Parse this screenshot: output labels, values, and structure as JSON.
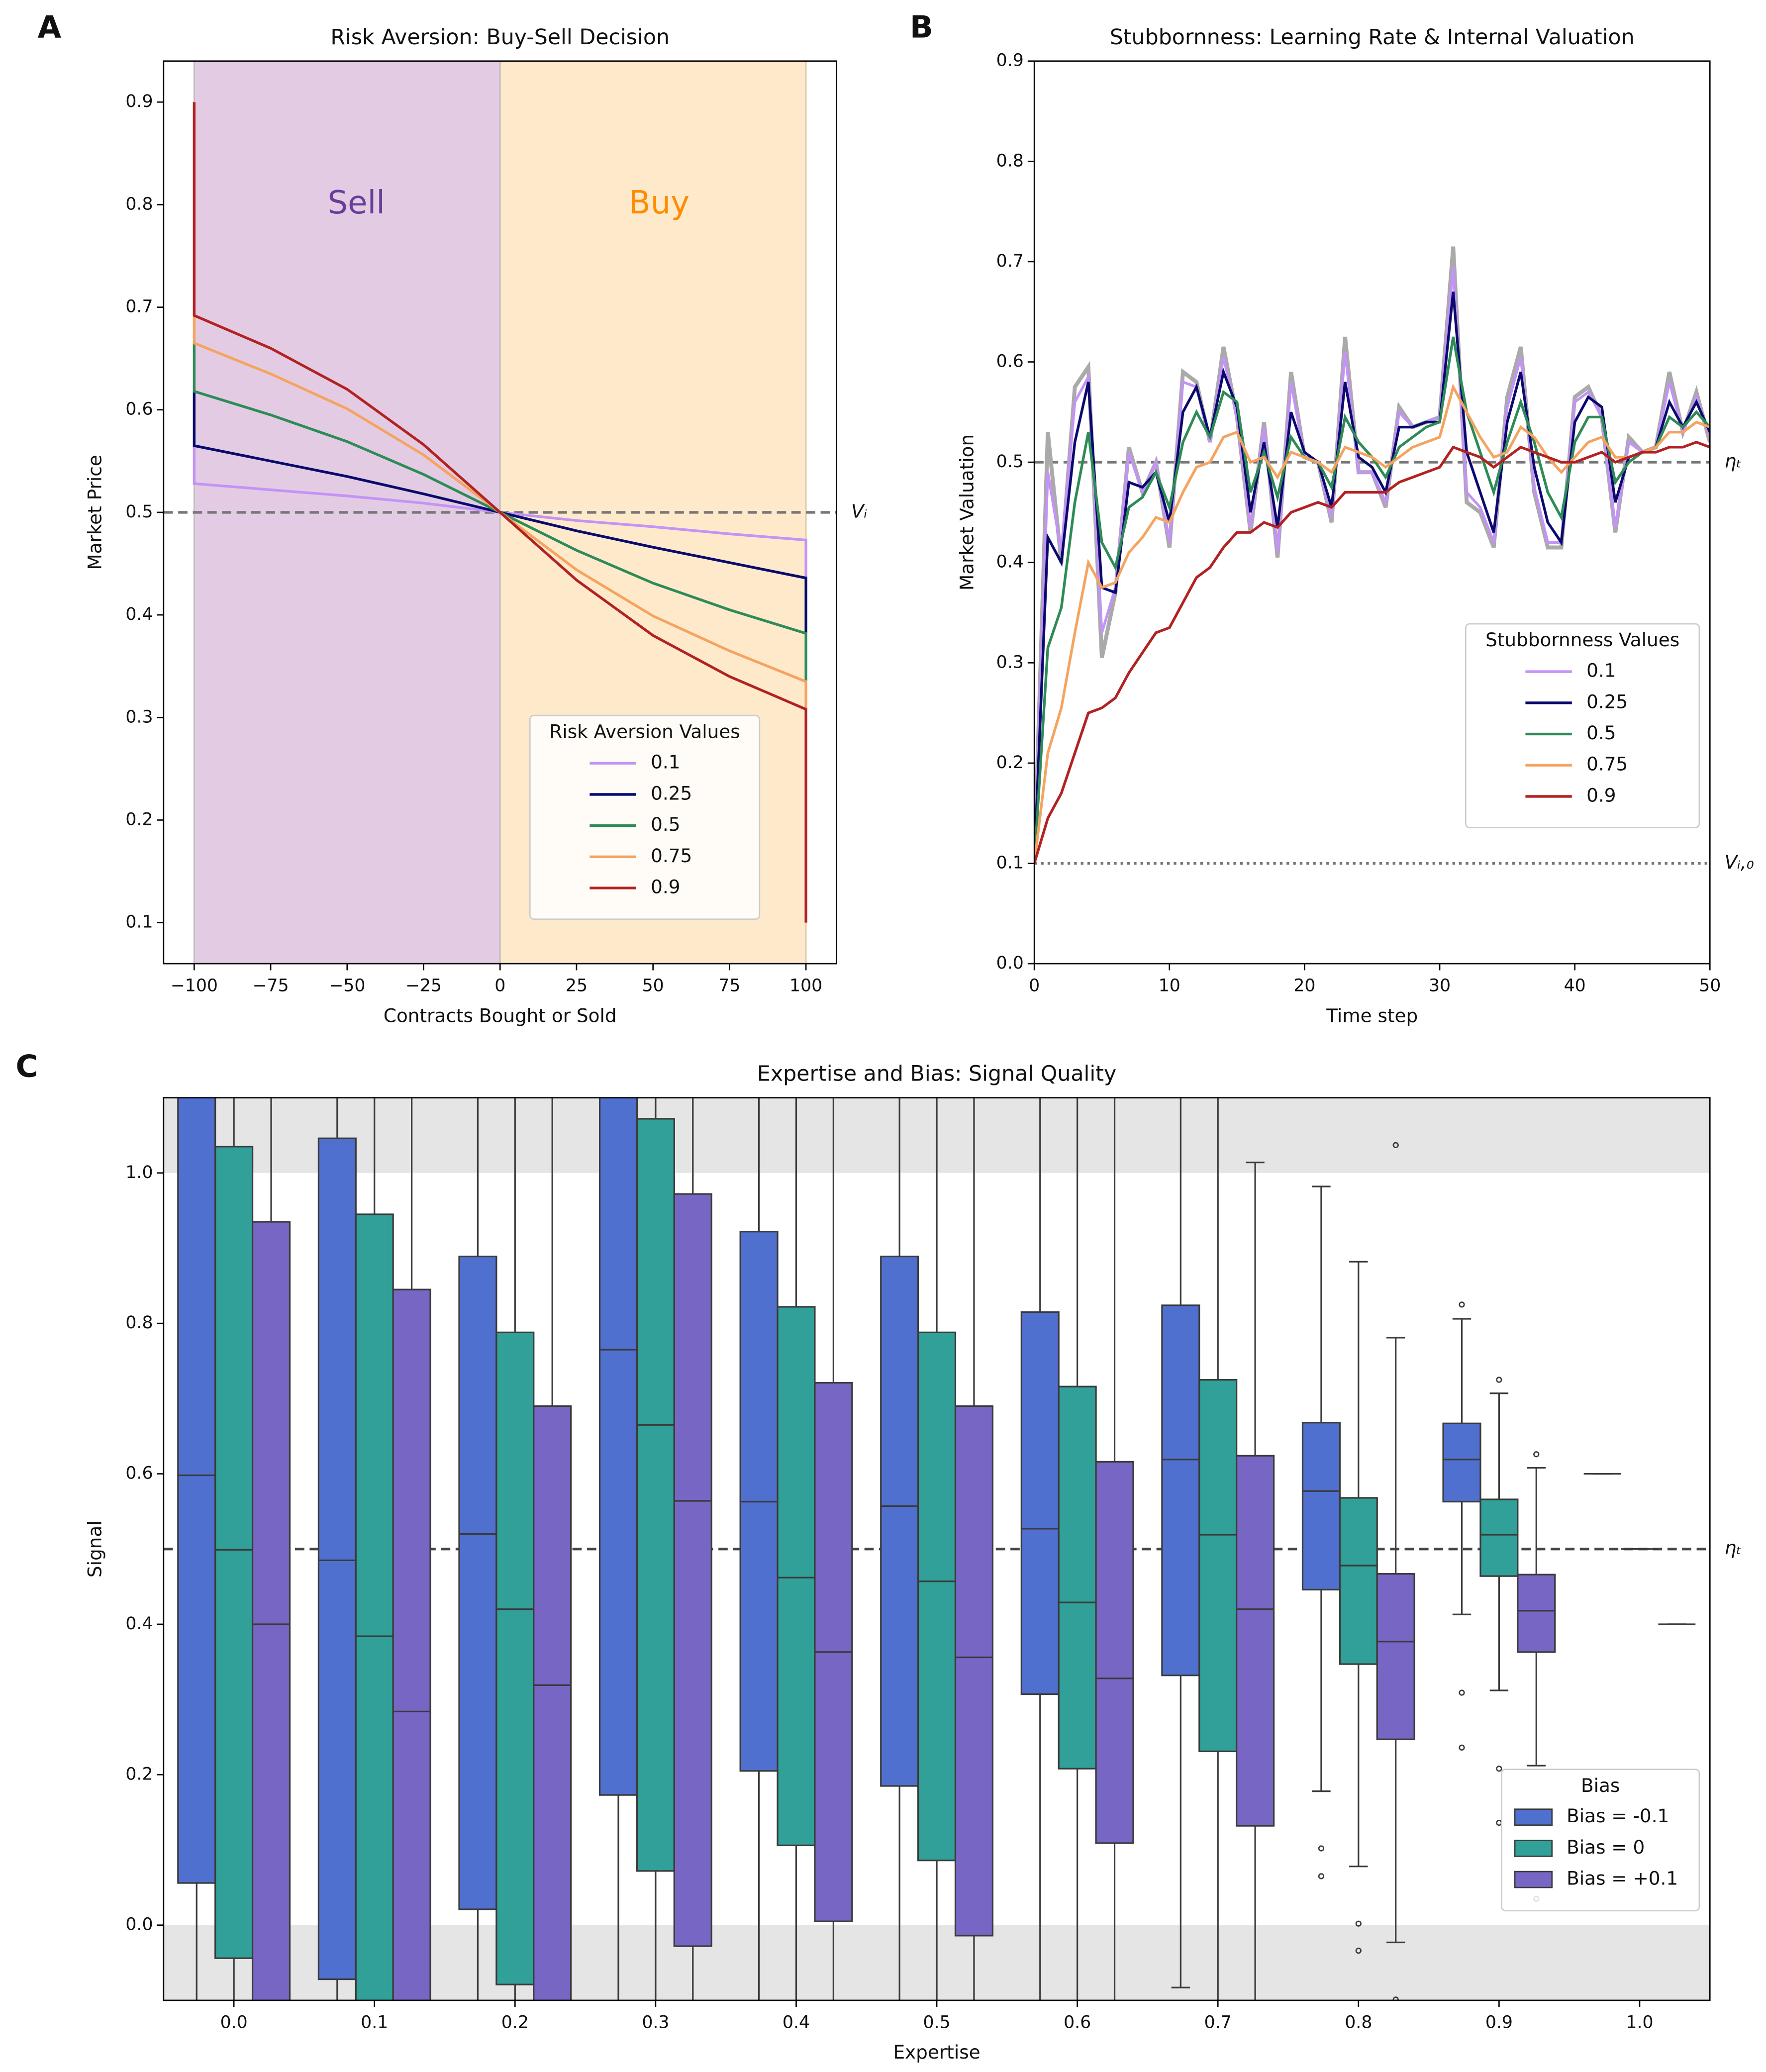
{
  "chart_data": [
    {
      "type": "line",
      "panel_label": "A",
      "title": "Risk Aversion: Buy-Sell Decision",
      "xlabel": "Contracts Bought or Sold",
      "ylabel": "Market Price",
      "x": [
        -100,
        -100,
        -75,
        -50,
        -25,
        0,
        25,
        50,
        75,
        100,
        100
      ],
      "series": [
        {
          "name": "0.1",
          "color": "#c393f5",
          "values": [
            0.565,
            0.528,
            0.522,
            0.516,
            0.509,
            0.5,
            0.492,
            0.486,
            0.479,
            0.473,
            0.436
          ]
        },
        {
          "name": "0.25",
          "color": "#0a0a6e",
          "values": [
            0.618,
            0.565,
            0.55,
            0.535,
            0.518,
            0.5,
            0.482,
            0.466,
            0.451,
            0.436,
            0.382
          ]
        },
        {
          "name": "0.5",
          "color": "#2e8b57",
          "values": [
            0.665,
            0.618,
            0.595,
            0.569,
            0.537,
            0.5,
            0.463,
            0.431,
            0.405,
            0.382,
            0.335
          ]
        },
        {
          "name": "0.75",
          "color": "#f4a460",
          "values": [
            0.692,
            0.665,
            0.635,
            0.601,
            0.556,
            0.5,
            0.444,
            0.399,
            0.365,
            0.335,
            0.308
          ]
        },
        {
          "name": "0.9",
          "color": "#b22222",
          "values": [
            0.9,
            0.692,
            0.66,
            0.62,
            0.566,
            0.5,
            0.434,
            0.38,
            0.34,
            0.308,
            0.1
          ]
        }
      ],
      "spans": [
        {
          "from": -100,
          "to": 0,
          "color": "#e3cce3"
        },
        {
          "from": 0,
          "to": 100,
          "color": "#feeacb"
        }
      ],
      "annotations": [
        {
          "text": "Sell",
          "color": "#6a3d9a"
        },
        {
          "text": "Buy",
          "color": "#ff8c00"
        }
      ],
      "hlines": [
        {
          "y": 0.5,
          "label": "Vᵢ",
          "color": "#777777",
          "style": "dashed"
        }
      ],
      "legend_title": "Risk Aversion Values",
      "xlim": [
        -110,
        110
      ],
      "ylim": [
        0.06,
        0.94
      ],
      "xticks": [
        {
          "value": -100,
          "label": "−100"
        },
        {
          "value": -75,
          "label": "−75"
        },
        {
          "value": -50,
          "label": "−50"
        },
        {
          "value": -25,
          "label": "−25"
        },
        0,
        25,
        50,
        75,
        100
      ],
      "yticks": [
        0.1,
        0.2,
        0.3,
        0.4,
        0.5,
        0.6,
        0.7,
        0.8,
        0.9
      ]
    },
    {
      "type": "line",
      "panel_label": "B",
      "title": "Stubbornness: Learning Rate & Internal Valuation",
      "xlabel": "Time step",
      "ylabel": "Market Valuation",
      "x": [
        0,
        1,
        2,
        3,
        4,
        5,
        6,
        7,
        8,
        9,
        10,
        11,
        12,
        13,
        14,
        15,
        16,
        17,
        18,
        19,
        20,
        21,
        22,
        23,
        24,
        25,
        26,
        27,
        28,
        29,
        30,
        31,
        32,
        33,
        34,
        35,
        36,
        37,
        38,
        39,
        40,
        41,
        42,
        43,
        44,
        45,
        46,
        47,
        48,
        49,
        50
      ],
      "extra_lines": [
        {
          "color": "#aaaaaa",
          "values": [
            0.1,
            0.53,
            0.4,
            0.575,
            0.595,
            0.305,
            0.37,
            0.515,
            0.47,
            0.5,
            0.415,
            0.59,
            0.58,
            0.52,
            0.615,
            0.545,
            0.43,
            0.54,
            0.405,
            0.59,
            0.505,
            0.5,
            0.44,
            0.625,
            0.49,
            0.49,
            0.455,
            0.555,
            0.535,
            0.54,
            0.545,
            0.715,
            0.46,
            0.45,
            0.415,
            0.565,
            0.615,
            0.47,
            0.415,
            0.415,
            0.565,
            0.575,
            0.545,
            0.43,
            0.525,
            0.51,
            0.515,
            0.59,
            0.53,
            0.57,
            0.52
          ]
        }
      ],
      "series": [
        {
          "name": "0.1",
          "color": "#c393f5",
          "values": [
            0.1,
            0.49,
            0.41,
            0.56,
            0.585,
            0.33,
            0.375,
            0.51,
            0.47,
            0.5,
            0.42,
            0.58,
            0.575,
            0.52,
            0.605,
            0.545,
            0.435,
            0.535,
            0.41,
            0.58,
            0.505,
            0.5,
            0.445,
            0.61,
            0.49,
            0.49,
            0.46,
            0.55,
            0.535,
            0.54,
            0.545,
            0.695,
            0.47,
            0.455,
            0.42,
            0.555,
            0.605,
            0.475,
            0.42,
            0.42,
            0.56,
            0.57,
            0.545,
            0.435,
            0.52,
            0.51,
            0.515,
            0.58,
            0.53,
            0.565,
            0.525
          ]
        },
        {
          "name": "0.25",
          "color": "#0a0a6e",
          "values": [
            0.1,
            0.425,
            0.4,
            0.52,
            0.58,
            0.375,
            0.37,
            0.48,
            0.475,
            0.49,
            0.44,
            0.55,
            0.575,
            0.525,
            0.59,
            0.555,
            0.45,
            0.52,
            0.435,
            0.55,
            0.51,
            0.5,
            0.455,
            0.58,
            0.505,
            0.495,
            0.47,
            0.535,
            0.535,
            0.54,
            0.54,
            0.67,
            0.51,
            0.47,
            0.43,
            0.54,
            0.59,
            0.495,
            0.44,
            0.42,
            0.54,
            0.565,
            0.555,
            0.46,
            0.505,
            0.51,
            0.515,
            0.56,
            0.535,
            0.56,
            0.53
          ]
        },
        {
          "name": "0.5",
          "color": "#2e8b57",
          "values": [
            0.1,
            0.315,
            0.355,
            0.46,
            0.53,
            0.42,
            0.395,
            0.455,
            0.465,
            0.49,
            0.455,
            0.52,
            0.55,
            0.525,
            0.57,
            0.56,
            0.47,
            0.51,
            0.465,
            0.525,
            0.505,
            0.5,
            0.475,
            0.545,
            0.52,
            0.505,
            0.485,
            0.515,
            0.525,
            0.535,
            0.54,
            0.625,
            0.55,
            0.51,
            0.47,
            0.52,
            0.56,
            0.52,
            0.47,
            0.445,
            0.52,
            0.545,
            0.545,
            0.48,
            0.5,
            0.51,
            0.515,
            0.545,
            0.535,
            0.55,
            0.535
          ]
        },
        {
          "name": "0.75",
          "color": "#f4a460",
          "values": [
            0.1,
            0.21,
            0.255,
            0.33,
            0.4,
            0.375,
            0.38,
            0.41,
            0.425,
            0.445,
            0.44,
            0.47,
            0.495,
            0.5,
            0.525,
            0.53,
            0.5,
            0.505,
            0.485,
            0.51,
            0.505,
            0.5,
            0.49,
            0.515,
            0.51,
            0.505,
            0.495,
            0.505,
            0.515,
            0.52,
            0.525,
            0.575,
            0.55,
            0.525,
            0.505,
            0.51,
            0.535,
            0.525,
            0.505,
            0.49,
            0.505,
            0.52,
            0.525,
            0.505,
            0.505,
            0.51,
            0.515,
            0.53,
            0.53,
            0.54,
            0.535
          ]
        },
        {
          "name": "0.9",
          "color": "#b22222",
          "values": [
            0.1,
            0.145,
            0.17,
            0.21,
            0.25,
            0.255,
            0.265,
            0.29,
            0.31,
            0.33,
            0.335,
            0.36,
            0.385,
            0.395,
            0.415,
            0.43,
            0.43,
            0.44,
            0.435,
            0.45,
            0.455,
            0.46,
            0.455,
            0.47,
            0.47,
            0.47,
            0.47,
            0.48,
            0.485,
            0.49,
            0.495,
            0.515,
            0.51,
            0.505,
            0.495,
            0.505,
            0.515,
            0.51,
            0.505,
            0.5,
            0.5,
            0.505,
            0.51,
            0.5,
            0.505,
            0.51,
            0.51,
            0.515,
            0.515,
            0.52,
            0.515
          ]
        }
      ],
      "hlines": [
        {
          "y": 0.5,
          "label": "ηₜ",
          "color": "#777777",
          "style": "dashed"
        },
        {
          "y": 0.1,
          "label": "Vᵢ,₀",
          "color": "#777777",
          "style": "dotted"
        }
      ],
      "legend_title": "Stubbornness Values",
      "xlim": [
        0,
        50
      ],
      "ylim": [
        0,
        0.9
      ],
      "xticks": [
        0,
        10,
        20,
        30,
        40,
        50
      ],
      "yticks": [
        {
          "value": 0,
          "label": "0.0"
        },
        0.1,
        0.2,
        0.3,
        0.4,
        0.5,
        0.6,
        0.7,
        0.8,
        0.9
      ]
    },
    {
      "type": "box",
      "panel_label": "C",
      "title": "Expertise and Bias: Signal Quality",
      "xlabel": "Expertise",
      "ylabel": "Signal",
      "categories": [
        "0.0",
        "0.1",
        "0.2",
        "0.3",
        "0.4",
        "0.5",
        "0.6",
        "0.7",
        "0.8",
        "0.9",
        "1.0"
      ],
      "series": [
        {
          "name": "Bias = -0.1",
          "color": "#5070d0",
          "q1": [
            0.056,
            -0.072,
            0.021,
            0.173,
            0.205,
            0.185,
            0.307,
            0.332,
            0.446,
            0.563,
            0.6
          ],
          "median": [
            0.598,
            0.485,
            0.52,
            0.765,
            0.563,
            0.557,
            0.527,
            0.619,
            0.577,
            0.619,
            0.6
          ],
          "q3": [
            1.2,
            1.046,
            0.889,
            1.25,
            0.922,
            0.889,
            0.815,
            0.824,
            0.668,
            0.667,
            0.6
          ],
          "whislo": [
            -0.3,
            -0.9,
            -0.8,
            -0.6,
            -0.5,
            -0.4,
            -0.3,
            -0.083,
            0.178,
            0.413,
            0.6
          ],
          "whishi": [
            1.8,
            1.8,
            1.6,
            2.0,
            1.6,
            1.5,
            1.3,
            1.2,
            0.982,
            0.806,
            0.6
          ],
          "outliers": [
            [],
            [],
            [],
            [],
            [],
            [],
            [],
            [],
            [
              0.102,
              0.065
            ],
            [
              0.825,
              0.309,
              0.236
            ],
            []
          ]
        },
        {
          "name": "Bias = 0",
          "color": "#30a098",
          "q1": [
            -0.044,
            -0.15,
            -0.079,
            0.072,
            0.106,
            0.086,
            0.208,
            0.231,
            0.347,
            0.464,
            0.5
          ],
          "median": [
            0.499,
            0.384,
            0.42,
            0.665,
            0.462,
            0.457,
            0.429,
            0.519,
            0.478,
            0.519,
            0.5
          ],
          "q3": [
            1.035,
            0.945,
            0.788,
            1.072,
            0.822,
            0.788,
            0.716,
            0.725,
            0.568,
            0.566,
            0.5
          ],
          "whislo": [
            -0.6,
            -0.9,
            -0.9,
            -0.7,
            -0.6,
            -0.5,
            -0.4,
            -0.2,
            0.078,
            0.312,
            0.5
          ],
          "whishi": [
            1.6,
            1.6,
            1.5,
            1.9,
            1.5,
            1.4,
            1.2,
            1.15,
            0.882,
            0.707,
            0.5
          ],
          "outliers": [
            [],
            [],
            [],
            [],
            [],
            [],
            [],
            [],
            [
              0.002,
              -0.034
            ],
            [
              0.725,
              0.208,
              0.136
            ],
            []
          ]
        },
        {
          "name": "Bias = +0.1",
          "color": "#7766c4",
          "q1": [
            -0.135,
            -0.25,
            -0.18,
            -0.028,
            0.005,
            -0.014,
            0.109,
            0.132,
            0.247,
            0.363,
            0.4
          ],
          "median": [
            0.4,
            0.284,
            0.319,
            0.564,
            0.363,
            0.356,
            0.328,
            0.42,
            0.377,
            0.418,
            0.4
          ],
          "q3": [
            0.935,
            0.845,
            0.69,
            0.972,
            0.721,
            0.69,
            0.616,
            0.624,
            0.467,
            0.466,
            0.4
          ],
          "whislo": [
            -0.7,
            -1.0,
            -1.0,
            -0.8,
            -0.7,
            -0.6,
            -0.5,
            -0.2,
            -0.023,
            0.212,
            0.4
          ],
          "whishi": [
            1.5,
            1.5,
            1.4,
            1.8,
            1.4,
            1.3,
            1.15,
            1.014,
            0.781,
            0.608,
            0.4
          ],
          "outliers": [
            [],
            [],
            [],
            [],
            [],
            [],
            [],
            [],
            [
              1.037,
              -0.099
            ],
            [
              0.626,
              0.108,
              0.035
            ],
            []
          ]
        }
      ],
      "shaded_ranges": [
        [
          1.0,
          1.1
        ],
        [
          -0.1,
          0.0
        ]
      ],
      "shade_color": "#e5e5e5",
      "hlines": [
        {
          "y": 0.5,
          "label": "ηₜ",
          "color": "#444444",
          "style": "dashed"
        }
      ],
      "legend_title": "Bias",
      "ylim": [
        -0.1,
        1.1
      ],
      "yticks": [
        {
          "value": 0,
          "label": "0.0"
        },
        0.2,
        0.4,
        0.6,
        0.8,
        {
          "value": 1,
          "label": "1.0"
        }
      ]
    }
  ]
}
